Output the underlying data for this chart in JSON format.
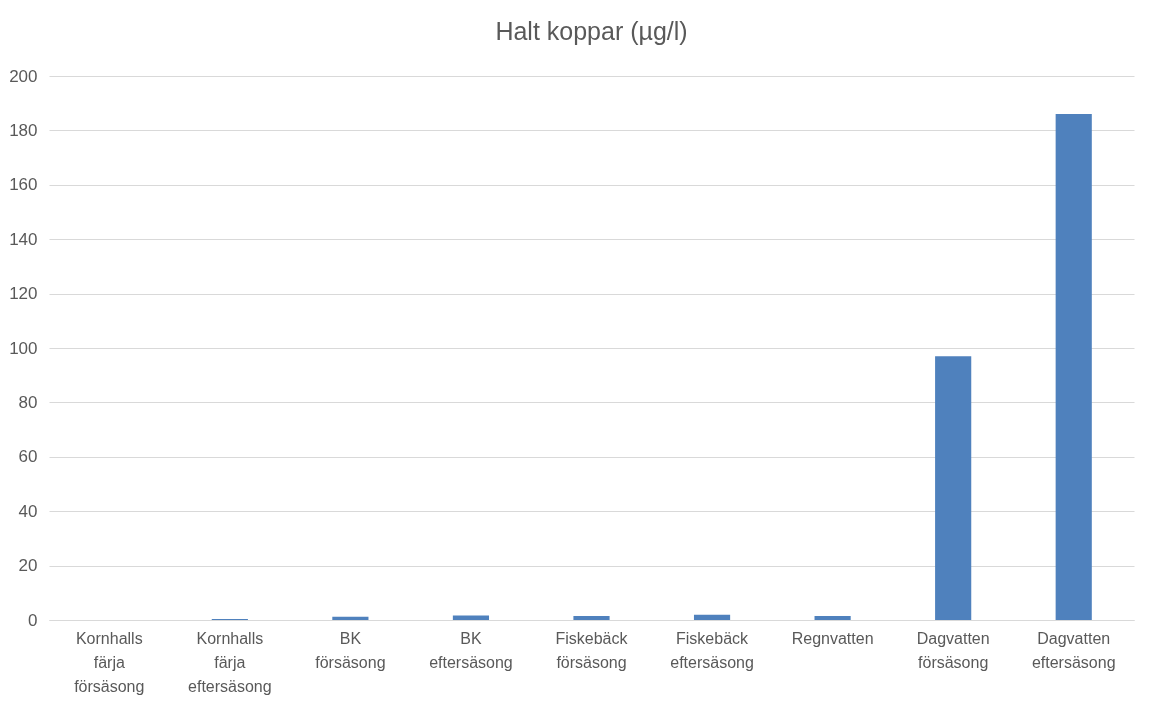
{
  "chart_data": {
    "type": "bar",
    "title": "Halt koppar (µg/l)",
    "categories": [
      "Kornhalls färja försäsong",
      "Kornhalls färja eftersäsong",
      "BK försäsong",
      "BK eftersäsong",
      "Fiskebäck försäsong",
      "Fiskebäck eftersäsong",
      "Regnvatten",
      "Dagvatten försäsong",
      "Dagvatten eftersäsong"
    ],
    "values": [
      0,
      0.4,
      1.2,
      1.7,
      1.5,
      1.9,
      1.5,
      97,
      186
    ],
    "color": "#4f81bd",
    "ylim": [
      0,
      200
    ],
    "yticks": [
      0,
      20,
      40,
      60,
      80,
      100,
      120,
      140,
      160,
      180,
      200
    ],
    "grid": "y"
  }
}
